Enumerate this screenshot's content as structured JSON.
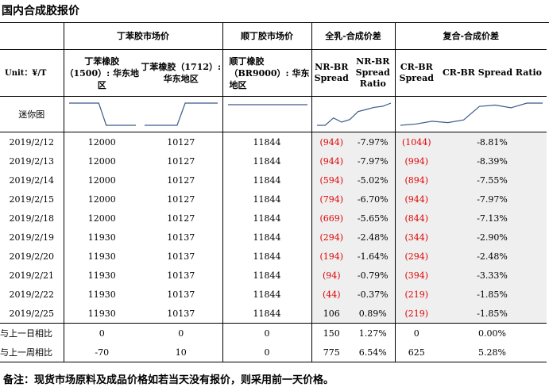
{
  "title": "国内合成胶报价",
  "header": {
    "group1": "丁苯胶市场价",
    "group2": "顺丁胶市场价",
    "group3": "全乳-合成价差",
    "group4": "复合-合成价差",
    "unit": "Unit：¥/T",
    "col1": "丁苯橡胶（1500）: 华东地区",
    "col2": "丁苯橡胶（1712）: 华东地区",
    "col3": "顺丁橡胶（BR9000）: 华东地区",
    "col4": "NR-BR Spread",
    "col5": "NR-BR Spread Ratio",
    "col6": "CR-BR Spread",
    "col7": "CR-BR Spread Ratio"
  },
  "sparkline_label": "迷你图",
  "rows": [
    {
      "date": "2019/2/12",
      "sbr1500": "12000",
      "sbr1712": "10127",
      "br9000": "11844",
      "nr_br": "(944)",
      "nr_br_ratio": "-7.97%",
      "cr_br": "(1044)",
      "cr_br_ratio": "-8.81%"
    },
    {
      "date": "2019/2/13",
      "sbr1500": "12000",
      "sbr1712": "10127",
      "br9000": "11844",
      "nr_br": "(944)",
      "nr_br_ratio": "-7.97%",
      "cr_br": "(994)",
      "cr_br_ratio": "-8.39%"
    },
    {
      "date": "2019/2/14",
      "sbr1500": "12000",
      "sbr1712": "10127",
      "br9000": "11844",
      "nr_br": "(594)",
      "nr_br_ratio": "-5.02%",
      "cr_br": "(894)",
      "cr_br_ratio": "-7.55%"
    },
    {
      "date": "2019/2/15",
      "sbr1500": "12000",
      "sbr1712": "10127",
      "br9000": "11844",
      "nr_br": "(794)",
      "nr_br_ratio": "-6.70%",
      "cr_br": "(944)",
      "cr_br_ratio": "-7.97%"
    },
    {
      "date": "2019/2/18",
      "sbr1500": "12000",
      "sbr1712": "10127",
      "br9000": "11844",
      "nr_br": "(669)",
      "nr_br_ratio": "-5.65%",
      "cr_br": "(844)",
      "cr_br_ratio": "-7.13%"
    },
    {
      "date": "2019/2/19",
      "sbr1500": "11930",
      "sbr1712": "10137",
      "br9000": "11844",
      "nr_br": "(294)",
      "nr_br_ratio": "-2.48%",
      "cr_br": "(344)",
      "cr_br_ratio": "-2.90%"
    },
    {
      "date": "2019/2/20",
      "sbr1500": "11930",
      "sbr1712": "10137",
      "br9000": "11844",
      "nr_br": "(194)",
      "nr_br_ratio": "-1.64%",
      "cr_br": "(294)",
      "cr_br_ratio": "-2.48%"
    },
    {
      "date": "2019/2/21",
      "sbr1500": "11930",
      "sbr1712": "10137",
      "br9000": "11844",
      "nr_br": "(94)",
      "nr_br_ratio": "-0.79%",
      "cr_br": "(394)",
      "cr_br_ratio": "-3.33%"
    },
    {
      "date": "2019/2/22",
      "sbr1500": "11930",
      "sbr1712": "10137",
      "br9000": "11844",
      "nr_br": "(44)",
      "nr_br_ratio": "-0.37%",
      "cr_br": "(219)",
      "cr_br_ratio": "-1.85%"
    },
    {
      "date": "2019/2/25",
      "sbr1500": "11930",
      "sbr1712": "10137",
      "br9000": "11844",
      "nr_br": "106",
      "nr_br_ratio": "0.89%",
      "cr_br": "(219)",
      "cr_br_ratio": "-1.85%"
    }
  ],
  "compare": [
    {
      "label": "与上一日相比",
      "sbr1500": "0",
      "sbr1712": "0",
      "br9000": "0",
      "nr_br": "150",
      "nr_br_ratio": "1.27%",
      "cr_br": "0",
      "cr_br_ratio": "0.00%"
    },
    {
      "label": "与上一周相比",
      "sbr1500": "-70",
      "sbr1712": "10",
      "br9000": "0",
      "nr_br": "775",
      "nr_br_ratio": "6.54%",
      "cr_br": "625",
      "cr_br_ratio": "5.28%"
    }
  ],
  "note": "备注：现货市场原料及成品价格如若当天没有报价，则采用前一天价格。",
  "colors": {
    "negative": "#e00000",
    "shade": "#efefef",
    "sparkline": "#3b5b8a"
  }
}
